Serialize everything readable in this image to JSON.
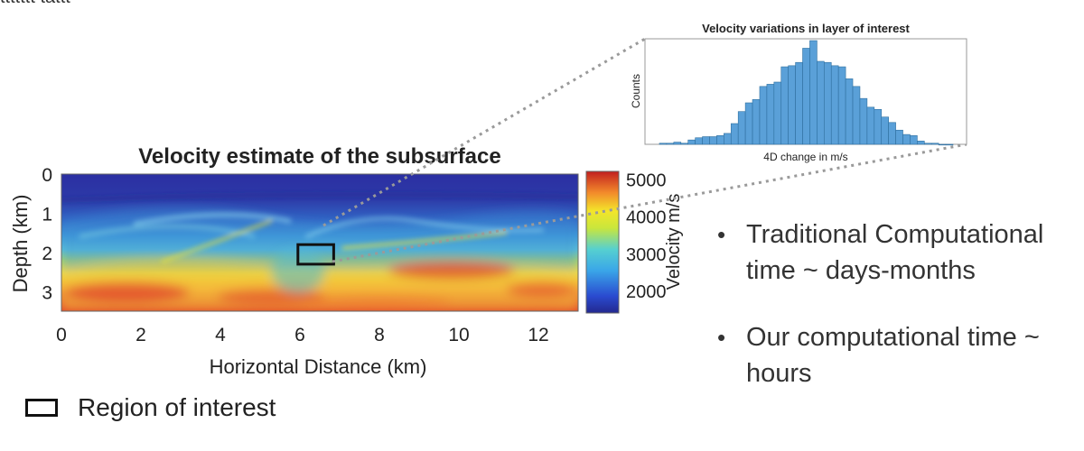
{
  "top_fragment": "ttttttt tàttt",
  "chart_data": [
    {
      "type": "heatmap",
      "title": "Velocity estimate of the subsurface",
      "xlabel": "Horizontal Distance (km)",
      "ylabel": "Depth (km)",
      "xlim": [
        0,
        13
      ],
      "ylim": [
        3.5,
        0
      ],
      "x_ticks": [
        "0",
        "2",
        "4",
        "6",
        "8",
        "10",
        "12"
      ],
      "y_ticks": [
        "0",
        "1",
        "2",
        "3"
      ],
      "colorbar": {
        "label": "Velocity m/s",
        "range": [
          1400,
          5200
        ],
        "ticks": [
          "5000",
          "4000",
          "3000",
          "2000"
        ]
      },
      "region_of_interest": {
        "x": [
          5.95,
          6.85
        ],
        "y": [
          1.8,
          2.3
        ]
      },
      "legend": "Region of interest"
    },
    {
      "type": "bar",
      "title": "Velocity variations in layer of interest",
      "xlabel": "4D change in m/s",
      "ylabel": "Counts",
      "values": [
        1,
        1,
        2,
        1,
        4,
        6,
        7,
        7,
        8,
        10,
        19,
        30,
        38,
        41,
        53,
        55,
        57,
        71,
        72,
        75,
        88,
        95,
        76,
        75,
        72,
        71,
        60,
        53,
        42,
        34,
        32,
        25,
        20,
        13,
        9,
        8,
        3,
        1,
        1,
        0,
        0
      ]
    }
  ],
  "bullets": [
    "Traditional Computational time ~ days-months",
    "Our computational time ~ hours"
  ],
  "colors": {
    "roi_box": "#111111",
    "hist_bar": "#5aa0d8",
    "connector": "#9a9a9a"
  }
}
